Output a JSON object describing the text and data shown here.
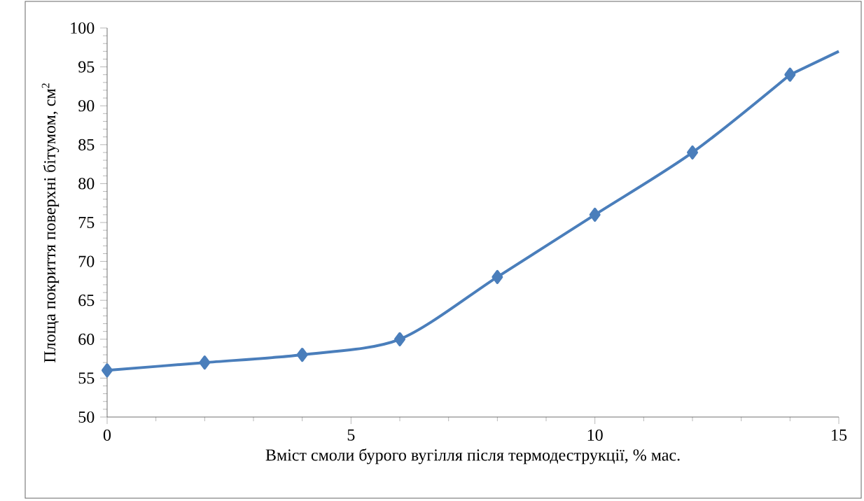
{
  "chart_data": {
    "type": "line",
    "xlabel": "Вміст смоли бурого вугілля після термодеструкції, % мас.",
    "ylabel": "Площа покриття поверхні бітумом, см$^{2}$",
    "xlim": [
      0,
      15
    ],
    "ylim": [
      50,
      100
    ],
    "xticks": [
      0,
      5,
      10,
      15
    ],
    "yticks": [
      50,
      55,
      60,
      65,
      70,
      75,
      80,
      85,
      90,
      95,
      100
    ],
    "marker": "diamond",
    "line_style": "solid",
    "series": [
      {
        "color": "#4a7ebb",
        "x": [
          0,
          2,
          4,
          6,
          8,
          10,
          12,
          14
        ],
        "values": [
          56,
          57,
          58,
          60,
          68,
          76,
          84,
          94
        ]
      },
      {
        "color": "#4a7ebb",
        "x": [
          14,
          15
        ],
        "values": [
          94,
          97
        ],
        "marker": "none"
      }
    ]
  }
}
